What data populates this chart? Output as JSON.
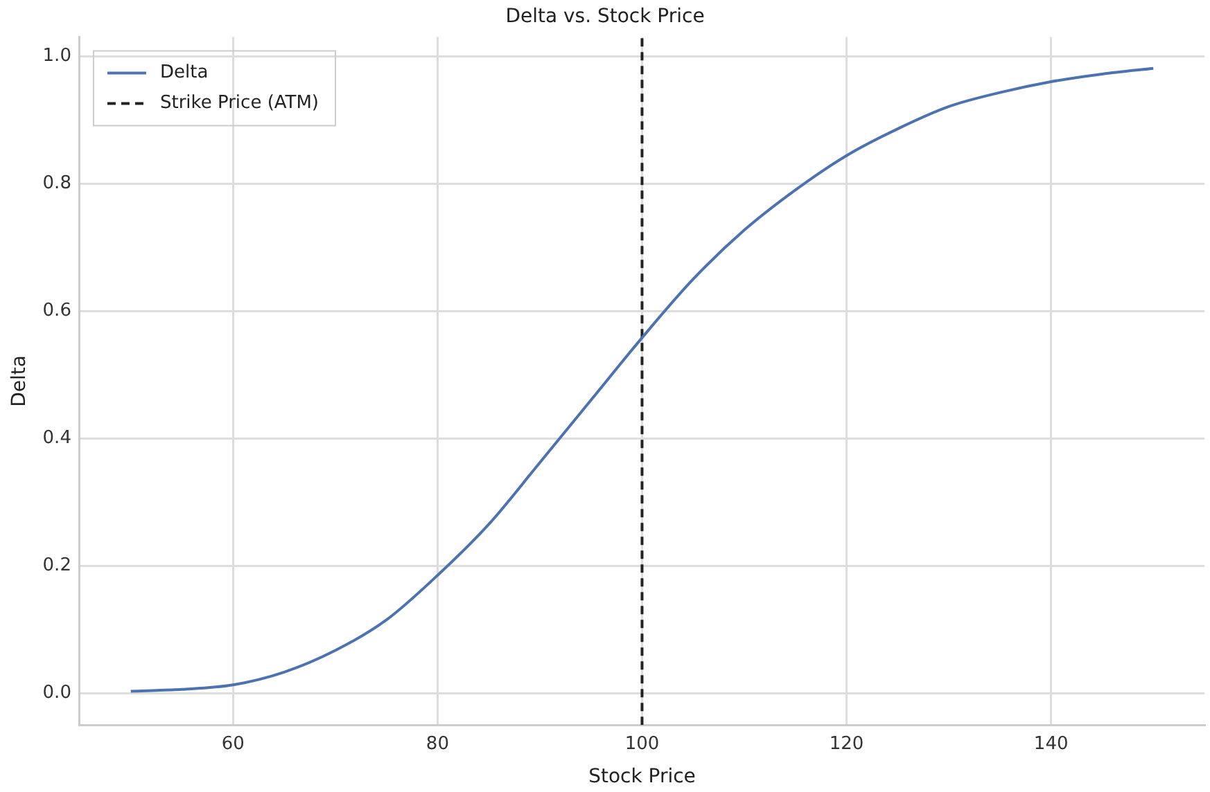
{
  "chart_data": {
    "type": "line",
    "title": "Delta vs. Stock Price",
    "xlabel": "Stock Price",
    "ylabel": "Delta",
    "x": [
      50,
      55,
      60,
      65,
      70,
      75,
      80,
      85,
      90,
      95,
      100,
      105,
      110,
      115,
      120,
      125,
      130,
      135,
      140,
      145,
      150
    ],
    "series": [
      {
        "name": "Delta",
        "color": "#4c72b0",
        "values": [
          0.003,
          0.006,
          0.013,
          0.033,
          0.067,
          0.115,
          0.185,
          0.265,
          0.362,
          0.46,
          0.558,
          0.65,
          0.727,
          0.79,
          0.844,
          0.886,
          0.921,
          0.943,
          0.96,
          0.972,
          0.981
        ]
      }
    ],
    "ref_lines": [
      {
        "axis": "x",
        "value": 100,
        "label": "Strike Price (ATM)",
        "color": "#222222",
        "line_style": "dashed"
      }
    ],
    "xlim": [
      45,
      155
    ],
    "xticks": [
      60,
      80,
      100,
      120,
      140
    ],
    "ylim": [
      -0.05,
      1.03
    ],
    "yticks": [
      {
        "value": 0,
        "label": "0.0"
      },
      {
        "value": 0.2,
        "label": "0.2"
      },
      {
        "value": 0.4,
        "label": "0.4"
      },
      {
        "value": 0.6,
        "label": "0.6"
      },
      {
        "value": 0.8,
        "label": "0.8"
      },
      {
        "value": 1,
        "label": "1.0"
      }
    ],
    "grid": true,
    "legend": "top left",
    "marker": "none",
    "line_style": "solid"
  }
}
